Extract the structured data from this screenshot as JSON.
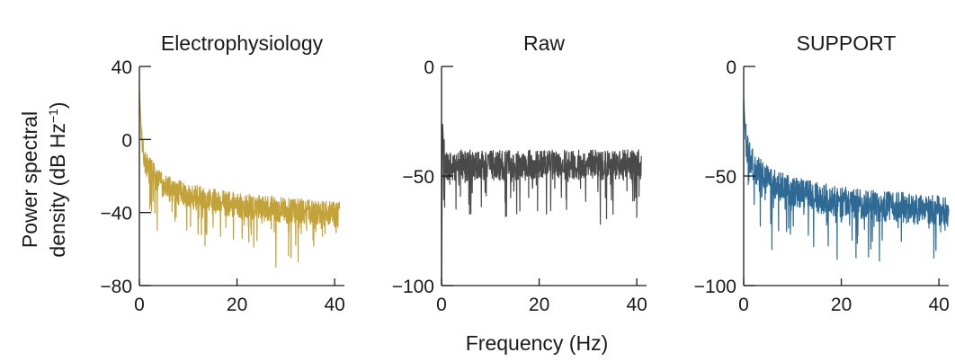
{
  "chart_data": [
    {
      "type": "line",
      "title": "Electrophysiology",
      "color": "#c4a23a",
      "xlim": [
        0,
        42
      ],
      "ylim": [
        -80,
        40
      ],
      "xticks": [
        "0",
        "20",
        "40"
      ],
      "yticks": [
        "40",
        "0",
        "−40",
        "−80"
      ],
      "ytick_values": [
        40,
        0,
        -40,
        -80
      ],
      "xtick_values": [
        0,
        20,
        40
      ],
      "series": [
        {
          "x": [
            0,
            0.2,
            0.4,
            0.6,
            0.8,
            1,
            1.5,
            2,
            3,
            4,
            5,
            6,
            8,
            10,
            12,
            15,
            18,
            20,
            22,
            24,
            26,
            28,
            30,
            32,
            35,
            38,
            40,
            41
          ],
          "y": [
            28,
            15,
            5,
            0,
            -5,
            -10,
            -14,
            -16,
            -20,
            -23,
            -25,
            -27,
            -29,
            -31,
            -32,
            -34,
            -35,
            -36,
            -37,
            -37,
            -38,
            -38,
            -39,
            -39,
            -40,
            -40,
            -41,
            -41
          ]
        }
      ]
    },
    {
      "type": "line",
      "title": "Raw",
      "color": "#4a4a4a",
      "xlim": [
        0,
        42
      ],
      "ylim": [
        -100,
        0
      ],
      "xticks": [
        "0",
        "20",
        "40"
      ],
      "yticks": [
        "0",
        "−50",
        "−100"
      ],
      "ytick_values": [
        0,
        -50,
        -100
      ],
      "xtick_values": [
        0,
        20,
        40
      ],
      "series": [
        {
          "x": [
            0,
            0.2,
            0.5,
            1,
            5,
            10,
            15,
            20,
            25,
            30,
            35,
            40,
            41
          ],
          "y": [
            -100,
            -25,
            -40,
            -45,
            -45,
            -45,
            -45,
            -45,
            -45,
            -45,
            -45,
            -45,
            -45
          ]
        }
      ]
    },
    {
      "type": "line",
      "title": "SUPPORT",
      "color": "#2e6a94",
      "xlim": [
        0,
        42
      ],
      "ylim": [
        -100,
        0
      ],
      "xticks": [
        "0",
        "20",
        "40"
      ],
      "yticks": [
        "0",
        "−50",
        "−100"
      ],
      "ytick_values": [
        0,
        -50,
        -100
      ],
      "xtick_values": [
        0,
        20,
        40
      ],
      "series": [
        {
          "x": [
            0,
            0.2,
            0.4,
            0.6,
            1,
            1.5,
            2,
            3,
            4,
            5,
            6,
            8,
            10,
            12,
            15,
            18,
            20,
            22,
            25,
            28,
            30,
            35,
            40,
            42
          ],
          "y": [
            -15,
            -25,
            -32,
            -36,
            -40,
            -43,
            -45,
            -48,
            -50,
            -52,
            -53,
            -55,
            -57,
            -58,
            -60,
            -61,
            -62,
            -62,
            -63,
            -64,
            -64,
            -65,
            -66,
            -66
          ]
        }
      ]
    }
  ],
  "ylabel_line1": "Power spectral",
  "ylabel_line2": "density (dB Hz",
  "ylabel_sup": "−1",
  "ylabel_close": ")",
  "xlabel": "Frequency (Hz)"
}
